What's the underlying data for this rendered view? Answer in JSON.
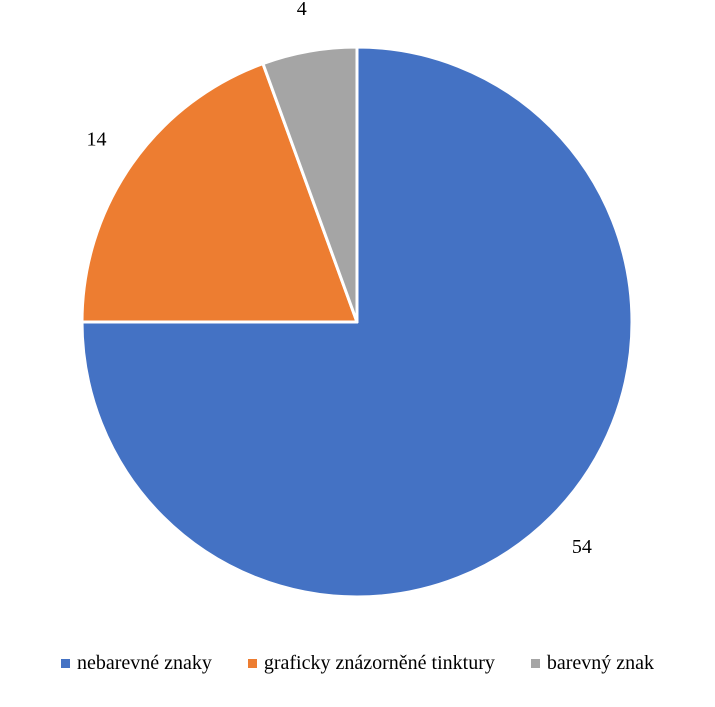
{
  "chart_data": {
    "type": "pie",
    "categories": [
      "nebarevné znaky",
      "graficky znázorněné tinktury",
      "barevný znak"
    ],
    "values": [
      54,
      14,
      4
    ],
    "colors": [
      "#4472C4",
      "#ED7D31",
      "#A5A5A5"
    ],
    "data_labels": [
      "54",
      "14",
      "4"
    ],
    "start_angle_deg": 0,
    "direction": "clockwise",
    "legend_position": "bottom"
  }
}
